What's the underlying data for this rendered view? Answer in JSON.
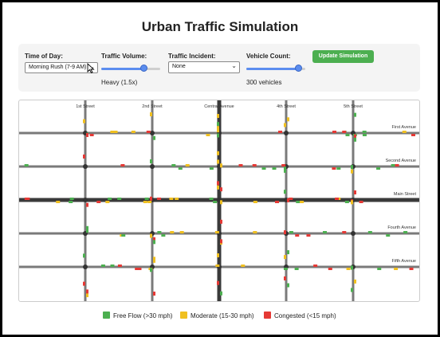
{
  "page": {
    "title": "Urban Traffic Simulation"
  },
  "controls": {
    "time_of_day": {
      "label": "Time of Day:",
      "value": "Morning Rush (7-9 AM)"
    },
    "traffic_volume": {
      "label": "Traffic Volume:",
      "value_text": "Heavy (1.5x)",
      "level": 0.72
    },
    "traffic_incident": {
      "label": "Traffic Incident:",
      "value": "None"
    },
    "vehicle_count": {
      "label": "Vehicle Count:",
      "value_text": "300 vehicles",
      "level": 0.88
    },
    "update_button": "Update Simulation"
  },
  "map": {
    "streets": [
      "1st Street",
      "2nd Street",
      "Central Avenue",
      "4th Street",
      "5th Street"
    ],
    "avenues": [
      "First Avenue",
      "Second Avenue",
      "Main Street",
      "Fourth Avenue",
      "Fifth Avenue"
    ]
  },
  "legend": [
    {
      "label": "Free Flow (>30 mph)",
      "color": "#4caf50"
    },
    {
      "label": "Moderate (15-30 mph)",
      "color": "#f0c020"
    },
    {
      "label": "Congested (<15 mph)",
      "color": "#e53935"
    }
  ]
}
